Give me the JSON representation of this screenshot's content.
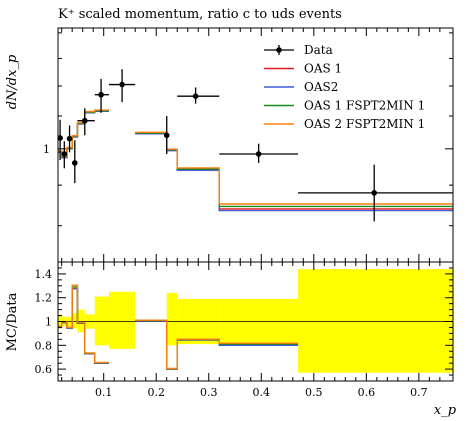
{
  "chart_data": [
    {
      "type": "line",
      "title": "K⁺ scaled momentum, ratio c to uds events",
      "ylabel": "dN/dx_p",
      "xlabel": "",
      "xlim": [
        0.013,
        0.765
      ],
      "ylim": [
        0.72,
        1.42
      ],
      "ytick_labels": [
        {
          "value": 1.0,
          "label": "1"
        }
      ],
      "legend": {
        "placement": "top-right"
      },
      "edges": [
        0.013,
        0.02,
        0.03,
        0.04,
        0.05,
        0.064,
        0.083,
        0.11,
        0.16,
        0.22,
        0.24,
        0.32,
        0.47,
        0.765
      ],
      "data": {
        "name": "Data",
        "color": "#000000",
        "points": [
          {
            "x": 0.017,
            "y": 1.032,
            "xerr": [
              0.013,
              0.02
            ],
            "yerr": [
              0.968,
              1.088
            ]
          },
          {
            "x": 0.025,
            "y": 0.985,
            "xerr": [
              0.02,
              0.03
            ],
            "yerr": [
              0.945,
              1.022
            ]
          },
          {
            "x": 0.035,
            "y": 1.03,
            "xerr": [
              0.03,
              0.04
            ],
            "yerr": [
              0.99,
              1.07
            ]
          },
          {
            "x": 0.045,
            "y": 0.96,
            "xerr": [
              0.04,
              0.05
            ],
            "yerr": [
              0.905,
              1.025
            ]
          },
          {
            "x": 0.064,
            "y": 1.085,
            "xerr": [
              0.05,
              0.083
            ],
            "yerr": [
              1.04,
              1.125
            ]
          },
          {
            "x": 0.095,
            "y": 1.17,
            "xerr": [
              0.083,
              0.11
            ],
            "yerr": [
              1.11,
              1.225
            ]
          },
          {
            "x": 0.135,
            "y": 1.205,
            "xerr": [
              0.11,
              0.16
            ],
            "yerr": [
              1.145,
              1.26
            ]
          },
          {
            "x": 0.22,
            "y": 1.04,
            "xerr": [
              0.22,
              0.22
            ],
            "yerr": [
              0.985,
              1.1
            ]
          },
          {
            "x": 0.275,
            "y": 1.165,
            "xerr": [
              0.24,
              0.32
            ],
            "yerr": [
              1.14,
              1.195
            ]
          },
          {
            "x": 0.395,
            "y": 0.985,
            "xerr": [
              0.32,
              0.47
            ],
            "yerr": [
              0.96,
              1.015
            ]
          },
          {
            "x": 0.615,
            "y": 0.88,
            "xerr": [
              0.47,
              0.765
            ],
            "yerr": [
              0.81,
              0.955
            ]
          }
        ]
      },
      "series": [
        {
          "name": "OAS 1",
          "color": "#e41a1c",
          "values": [
            0.99,
            0.975,
            1.0,
            1.035,
            1.075,
            1.11,
            1.115,
            null,
            1.045,
            0.995,
            0.94,
            0.84,
            0.84
          ]
        },
        {
          "name": "OAS2",
          "color": "#3b5bdb",
          "values": [
            0.99,
            0.975,
            1.0,
            1.035,
            1.075,
            1.11,
            1.115,
            null,
            1.045,
            0.995,
            0.94,
            0.836,
            0.836
          ]
        },
        {
          "name": "OAS 1 FSPT2MIN 1",
          "color": "#1a8a1a",
          "values": [
            0.992,
            0.977,
            1.002,
            1.037,
            1.077,
            1.112,
            1.117,
            null,
            1.047,
            0.997,
            0.943,
            0.846,
            0.846
          ]
        },
        {
          "name": "OAS 2 FSPT2MIN 1",
          "color": "#ff7f0e",
          "values": [
            0.994,
            0.979,
            1.004,
            1.039,
            1.079,
            1.114,
            1.119,
            null,
            1.049,
            0.999,
            0.946,
            0.852,
            0.852
          ]
        }
      ]
    },
    {
      "type": "line",
      "title": "",
      "ylabel": "MC/Data",
      "xlabel": "x_p",
      "xlim": [
        0.013,
        0.765
      ],
      "ylim": [
        0.5,
        1.5
      ],
      "yticks": [
        0.6,
        0.8,
        1.0,
        1.2,
        1.4
      ],
      "ytick_labels": [
        "0.6",
        "0.8",
        "1",
        "1.2",
        "1.4"
      ],
      "xticks": [
        0.1,
        0.2,
        0.3,
        0.4,
        0.5,
        0.6,
        0.7
      ],
      "xtick_labels": [
        "0.1",
        "0.2",
        "0.3",
        "0.4",
        "0.5",
        "0.6",
        "0.7"
      ],
      "reference_line": 1.0,
      "band_color": "#ffff00",
      "band": [
        {
          "x0": 0.013,
          "x1": 0.02,
          "lo": 0.94,
          "hi": 1.06
        },
        {
          "x0": 0.02,
          "x1": 0.03,
          "lo": 0.96,
          "hi": 1.04
        },
        {
          "x0": 0.03,
          "x1": 0.04,
          "lo": 0.96,
          "hi": 1.04
        },
        {
          "x0": 0.04,
          "x1": 0.05,
          "lo": 0.94,
          "hi": 1.07
        },
        {
          "x0": 0.05,
          "x1": 0.064,
          "lo": 0.91,
          "hi": 1.1
        },
        {
          "x0": 0.064,
          "x1": 0.083,
          "lo": 0.94,
          "hi": 1.06
        },
        {
          "x0": 0.083,
          "x1": 0.11,
          "lo": 0.8,
          "hi": 1.21
        },
        {
          "x0": 0.11,
          "x1": 0.16,
          "lo": 0.77,
          "hi": 1.25
        },
        {
          "x0": 0.22,
          "x1": 0.24,
          "lo": 0.8,
          "hi": 1.24
        },
        {
          "x0": 0.24,
          "x1": 0.32,
          "lo": 0.81,
          "hi": 1.19
        },
        {
          "x0": 0.32,
          "x1": 0.47,
          "lo": 0.8,
          "hi": 1.19
        },
        {
          "x0": 0.47,
          "x1": 0.765,
          "lo": 0.57,
          "hi": 1.44
        }
      ],
      "series": [
        {
          "name": "OAS 1",
          "color": "#e41a1c",
          "values": [
            0.955,
            0.99,
            0.945,
            1.275,
            0.985,
            0.73,
            0.65,
            null,
            1.005,
            0.6,
            0.845,
            0.805
          ]
        },
        {
          "name": "OAS2",
          "color": "#3b5bdb",
          "values": [
            0.955,
            0.99,
            0.945,
            1.275,
            0.985,
            0.73,
            0.65,
            null,
            1.005,
            0.6,
            0.845,
            0.8
          ]
        },
        {
          "name": "OAS 1 FSPT2MIN 1",
          "color": "#1a8a1a",
          "values": [
            0.958,
            0.993,
            0.948,
            1.29,
            0.988,
            0.733,
            0.653,
            null,
            1.008,
            0.603,
            0.848,
            0.81
          ]
        },
        {
          "name": "OAS 2 FSPT2MIN 1",
          "color": "#ff7f0e",
          "values": [
            0.96,
            0.996,
            0.951,
            1.305,
            0.991,
            0.736,
            0.656,
            null,
            1.011,
            0.606,
            0.851,
            0.818
          ]
        }
      ]
    }
  ]
}
